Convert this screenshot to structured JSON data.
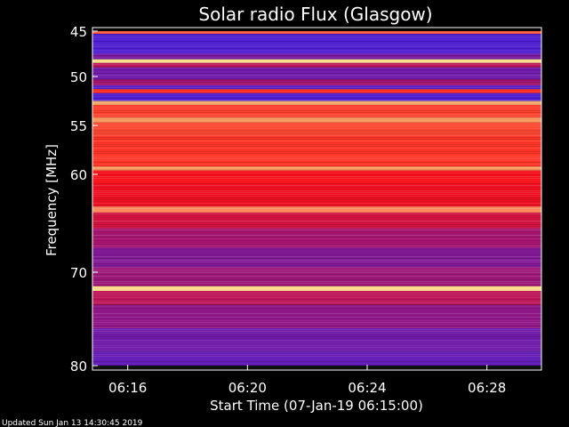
{
  "chart_data": {
    "type": "heatmap",
    "title": "Solar radio Flux (Glasgow)",
    "ylabel": "Frequency [MHz]",
    "xlabel": "Start Time (07-Jan-19 06:15:00)",
    "footer": "Updated Sun Jan 13 14:30:45 2019",
    "y_ticks": [
      "45",
      "50",
      "55",
      "60",
      "70",
      "80"
    ],
    "x_ticks": [
      "06:16",
      "06:20",
      "06:24",
      "06:28"
    ],
    "ylim": [
      45,
      80
    ],
    "xlim": [
      "06:15:00",
      "06:30:00"
    ],
    "colormap": "blue-red-yellow-white",
    "colors": {
      "background": "#000000",
      "low": "#2020ff",
      "mid": "#ff1010",
      "high": "#ffffa0"
    },
    "bands": [
      {
        "from": 45.0,
        "to": 45.3,
        "level": 0.65
      },
      {
        "from": 45.3,
        "to": 47.5,
        "level": 0.1
      },
      {
        "from": 47.5,
        "to": 48.1,
        "level": 0.2
      },
      {
        "from": 48.1,
        "to": 48.5,
        "level": 0.95
      },
      {
        "from": 48.5,
        "to": 49.0,
        "level": 0.35
      },
      {
        "from": 49.0,
        "to": 50.3,
        "level": 0.18
      },
      {
        "from": 50.3,
        "to": 50.9,
        "level": 0.3
      },
      {
        "from": 50.9,
        "to": 51.3,
        "level": 0.12
      },
      {
        "from": 51.3,
        "to": 51.7,
        "level": 0.55
      },
      {
        "from": 51.7,
        "to": 52.5,
        "level": 0.1
      },
      {
        "from": 52.5,
        "to": 52.9,
        "level": 0.85
      },
      {
        "from": 52.9,
        "to": 54.2,
        "level": 0.6
      },
      {
        "from": 54.2,
        "to": 54.7,
        "level": 0.8
      },
      {
        "from": 54.7,
        "to": 56.0,
        "level": 0.62
      },
      {
        "from": 56.0,
        "to": 59.2,
        "level": 0.58
      },
      {
        "from": 59.2,
        "to": 59.6,
        "level": 0.8
      },
      {
        "from": 59.6,
        "to": 61.0,
        "level": 0.48
      },
      {
        "from": 61.0,
        "to": 63.3,
        "level": 0.46
      },
      {
        "from": 63.3,
        "to": 63.9,
        "level": 0.75
      },
      {
        "from": 63.9,
        "to": 65.5,
        "level": 0.4
      },
      {
        "from": 65.5,
        "to": 67.5,
        "level": 0.3
      },
      {
        "from": 67.5,
        "to": 69.5,
        "level": 0.22
      },
      {
        "from": 69.5,
        "to": 71.5,
        "level": 0.28
      },
      {
        "from": 71.5,
        "to": 72.0,
        "level": 0.92
      },
      {
        "from": 72.0,
        "to": 73.5,
        "level": 0.35
      },
      {
        "from": 73.5,
        "to": 76.0,
        "level": 0.25
      },
      {
        "from": 76.0,
        "to": 78.5,
        "level": 0.18
      },
      {
        "from": 78.5,
        "to": 80.0,
        "level": 0.15
      }
    ]
  }
}
